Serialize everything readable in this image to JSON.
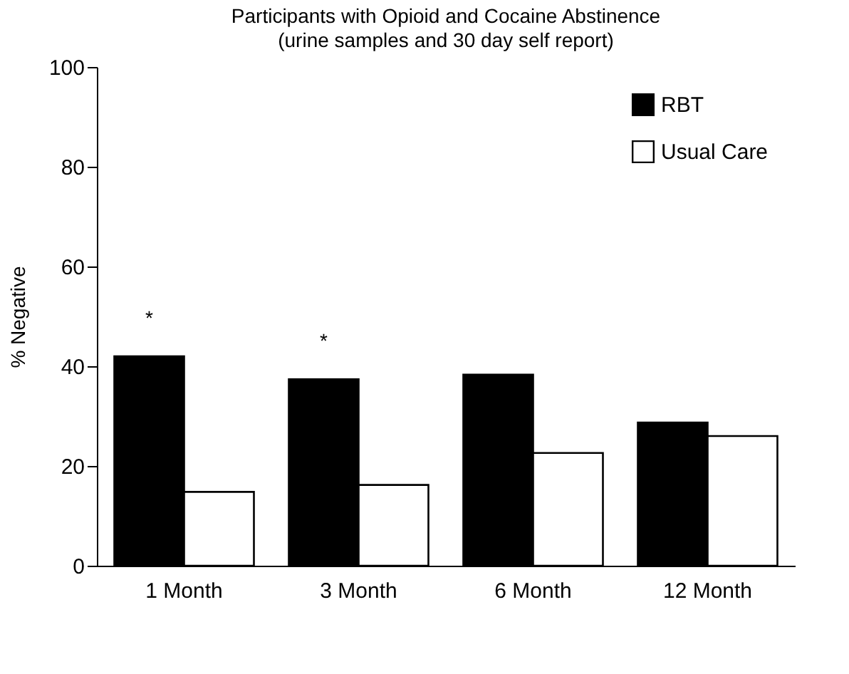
{
  "chart_data": {
    "type": "bar",
    "title": "Participants with Opioid and Cocaine Abstinence",
    "subtitle": "(urine samples and 30 day self report)",
    "ylabel": "% Negative",
    "categories": [
      "1 Month",
      "3 Month",
      "6 Month",
      "12 Month"
    ],
    "series": [
      {
        "name": "RBT",
        "color": "#000000",
        "values": [
          42,
          37.4,
          38.3,
          28.7
        ]
      },
      {
        "name": "Usual Care",
        "color": "#ffffff",
        "values": [
          14.8,
          16.2,
          22.6,
          26
        ]
      }
    ],
    "ylim": [
      0,
      100
    ],
    "yticks": [
      0,
      20,
      40,
      60,
      80,
      100
    ],
    "grid": false,
    "legend": "top right",
    "annotations": [
      {
        "text": "*",
        "x": "1 Month",
        "y": 42
      },
      {
        "text": "*",
        "x": "3 Month",
        "y": 37.4
      }
    ]
  }
}
